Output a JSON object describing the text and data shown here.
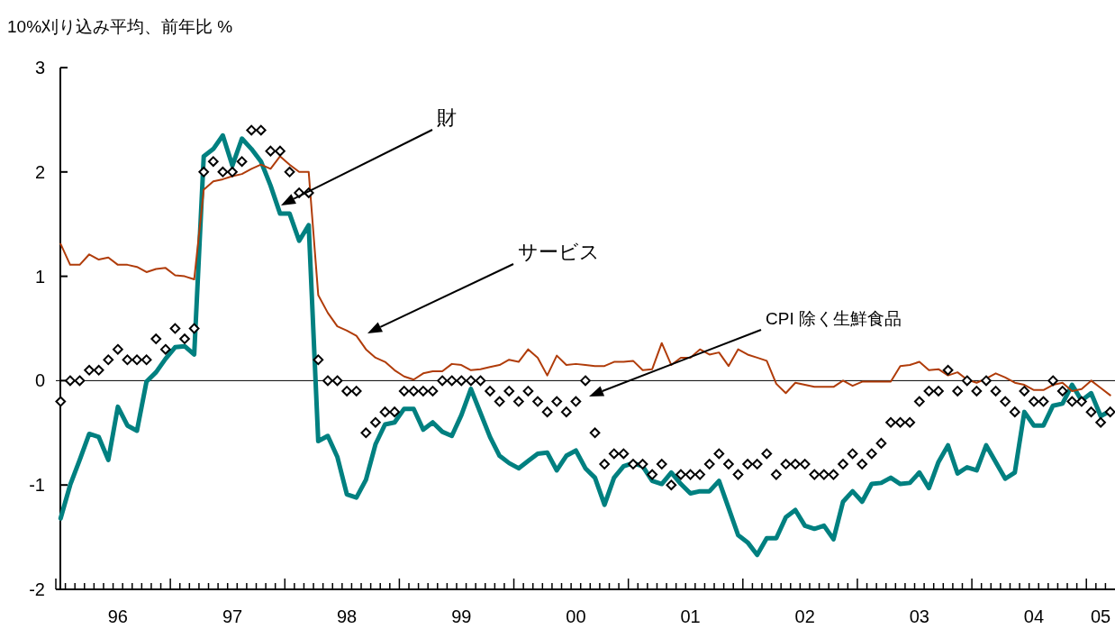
{
  "chart_data": {
    "type": "line",
    "ylabel": "10%刈り込み平均、前年比 %",
    "categories": [
      null,
      null,
      null,
      null,
      null,
      null,
      "96",
      null,
      null,
      null,
      null,
      null,
      null,
      null,
      null,
      null,
      null,
      null,
      "97",
      null,
      null,
      null,
      null,
      null,
      null,
      null,
      null,
      null,
      null,
      null,
      "98",
      null,
      null,
      null,
      null,
      null,
      null,
      null,
      null,
      null,
      null,
      null,
      "99",
      null,
      null,
      null,
      null,
      null,
      null,
      null,
      null,
      null,
      null,
      null,
      "00",
      null,
      null,
      null,
      null,
      null,
      null,
      null,
      null,
      null,
      null,
      null,
      "01",
      null,
      null,
      null,
      null,
      null,
      null,
      null,
      null,
      null,
      null,
      null,
      "02",
      null,
      null,
      null,
      null,
      null,
      null,
      null,
      null,
      null,
      null,
      null,
      "03",
      null,
      null,
      null,
      null,
      null,
      null,
      null,
      null,
      null,
      null,
      null,
      "04",
      null,
      null,
      null,
      null,
      null,
      null,
      "05",
      null
    ],
    "ylim": [
      -2,
      3
    ],
    "yticks": [
      -2,
      -1,
      0,
      1,
      2,
      3
    ],
    "grid": false,
    "annotations": [
      "財",
      "サービス",
      "CPI 除く生鮮食品"
    ],
    "ref_lines": [
      {
        "axis": "y",
        "value": 0,
        "color": "#000000"
      }
    ],
    "series": [
      {
        "color": "#008080",
        "line_style": "solid",
        "values": [
          -1.32,
          -1.0,
          -0.76,
          -0.51,
          -0.54,
          -0.76,
          -0.25,
          -0.43,
          -0.48,
          -0.01,
          0.08,
          0.21,
          0.32,
          0.33,
          0.25,
          2.15,
          2.22,
          2.35,
          2.06,
          2.32,
          2.22,
          2.1,
          1.87,
          1.6,
          1.6,
          1.34,
          1.49,
          -0.58,
          -0.53,
          -0.73,
          -1.09,
          -1.12,
          -0.95,
          -0.61,
          -0.42,
          -0.4,
          -0.27,
          -0.27,
          -0.47,
          -0.4,
          -0.49,
          -0.53,
          -0.33,
          -0.08,
          -0.31,
          -0.54,
          -0.72,
          -0.79,
          -0.84,
          -0.77,
          -0.7,
          -0.69,
          -0.86,
          -0.72,
          -0.67,
          -0.84,
          -0.93,
          -1.19,
          -0.93,
          -0.82,
          -0.79,
          -0.82,
          -0.96,
          -0.99,
          -0.88,
          -0.99,
          -1.08,
          -1.06,
          -1.06,
          -0.96,
          -1.22,
          -1.48,
          -1.55,
          -1.67,
          -1.51,
          -1.51,
          -1.31,
          -1.24,
          -1.39,
          -1.42,
          -1.39,
          -1.52,
          -1.16,
          -1.06,
          -1.16,
          -0.99,
          -0.98,
          -0.93,
          -0.99,
          -0.98,
          -0.88,
          -1.03,
          -0.78,
          -0.62,
          -0.89,
          -0.83,
          -0.86,
          -0.62,
          -0.78,
          -0.94,
          -0.88,
          -0.3,
          -0.43,
          -0.43,
          -0.24,
          -0.22,
          -0.04,
          -0.19,
          -0.12,
          -0.34,
          -0.29
        ]
      },
      {
        "color": "#b03c0a",
        "line_style": "solid",
        "values": [
          1.31,
          1.11,
          1.11,
          1.21,
          1.16,
          1.18,
          1.11,
          1.11,
          1.09,
          1.04,
          1.07,
          1.08,
          1.01,
          1.0,
          0.97,
          1.83,
          1.91,
          1.93,
          1.96,
          1.98,
          2.03,
          2.07,
          2.03,
          2.15,
          2.07,
          2.0,
          2.0,
          0.82,
          0.65,
          0.52,
          0.48,
          0.43,
          0.3,
          0.22,
          0.18,
          0.1,
          0.04,
          0.01,
          0.07,
          0.09,
          0.09,
          0.16,
          0.15,
          0.1,
          0.11,
          0.13,
          0.15,
          0.2,
          0.18,
          0.3,
          0.22,
          0.05,
          0.24,
          0.15,
          0.16,
          0.15,
          0.14,
          0.14,
          0.18,
          0.18,
          0.19,
          0.1,
          0.11,
          0.36,
          0.15,
          0.22,
          0.22,
          0.3,
          0.25,
          0.27,
          0.14,
          0.3,
          0.25,
          0.22,
          0.19,
          -0.03,
          -0.12,
          -0.02,
          -0.04,
          -0.06,
          -0.06,
          -0.06,
          0.0,
          -0.05,
          -0.01,
          -0.01,
          -0.01,
          -0.01,
          0.14,
          0.15,
          0.18,
          0.1,
          0.11,
          0.05,
          0.08,
          0.01,
          -0.02,
          0.02,
          0.07,
          0.03,
          -0.02,
          -0.04,
          -0.09,
          -0.09,
          -0.04,
          -0.02,
          -0.1,
          -0.08,
          0,
          -0.07,
          -0.14
        ]
      },
      {
        "type": "scatter",
        "color": "#000000",
        "marker": "diamond",
        "values": [
          -0.2,
          0,
          0,
          0.1,
          0.1,
          0.2,
          0.3,
          0.2,
          0.2,
          0.2,
          0.4,
          0.3,
          0.5,
          0.4,
          0.5,
          2.0,
          2.1,
          2.0,
          2.0,
          2.1,
          2.4,
          2.4,
          2.2,
          2.2,
          2.0,
          1.8,
          1.8,
          0.2,
          0,
          0,
          -0.1,
          -0.1,
          -0.5,
          -0.4,
          -0.3,
          -0.3,
          -0.1,
          -0.1,
          -0.1,
          -0.1,
          0,
          0,
          0,
          0,
          0,
          -0.1,
          -0.2,
          -0.1,
          -0.2,
          -0.1,
          -0.2,
          -0.3,
          -0.2,
          -0.3,
          -0.2,
          0,
          -0.5,
          -0.8,
          -0.7,
          -0.7,
          -0.8,
          -0.8,
          -0.9,
          -0.8,
          -1.0,
          -0.9,
          -0.9,
          -0.9,
          -0.8,
          -0.7,
          -0.8,
          -0.9,
          -0.8,
          -0.8,
          -0.7,
          -0.9,
          -0.8,
          -0.8,
          -0.8,
          -0.9,
          -0.9,
          -0.9,
          -0.8,
          -0.7,
          -0.8,
          -0.7,
          -0.6,
          -0.4,
          -0.4,
          -0.4,
          -0.2,
          -0.1,
          -0.1,
          0.1,
          -0.1,
          0,
          -0.1,
          0,
          -0.1,
          -0.2,
          -0.3,
          -0.1,
          -0.2,
          -0.2,
          0,
          -0.1,
          -0.2,
          -0.2,
          -0.3,
          -0.4,
          -0.3
        ]
      }
    ]
  }
}
